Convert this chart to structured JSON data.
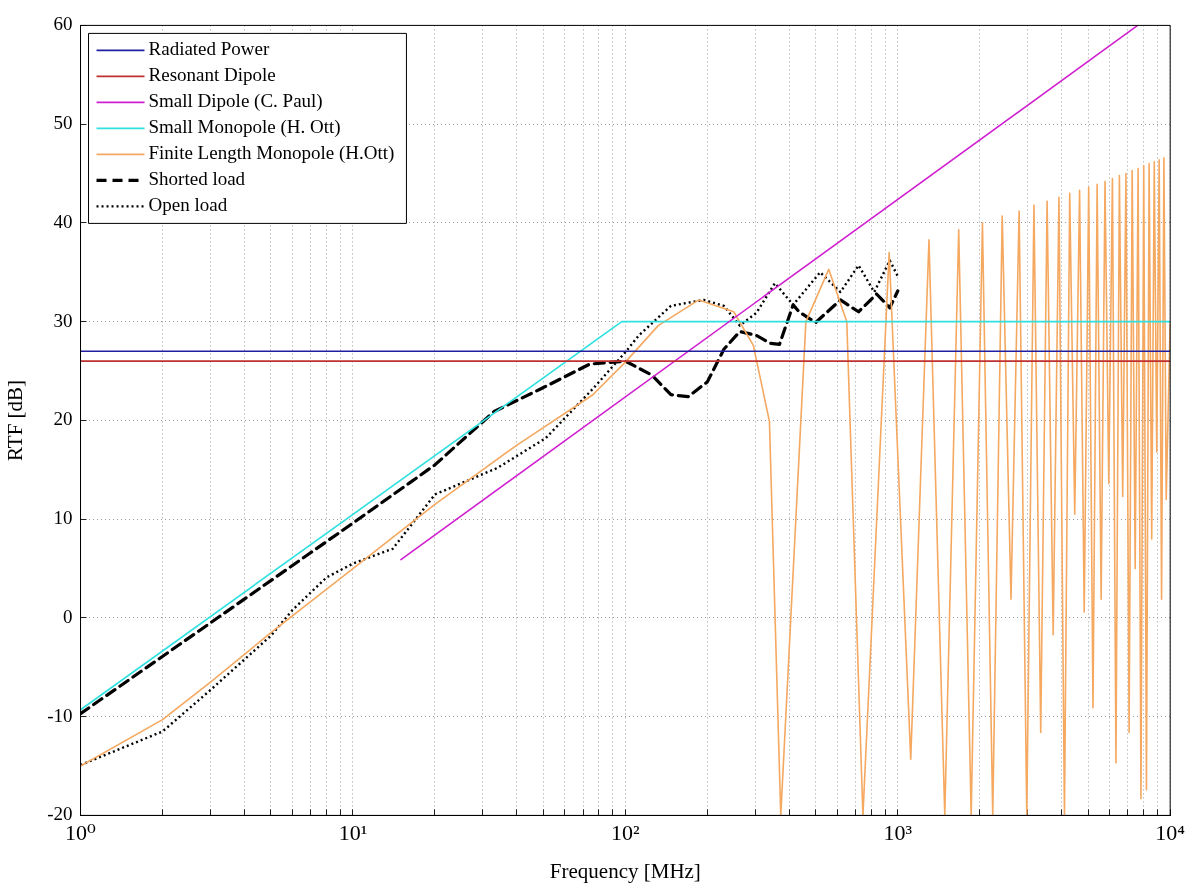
{
  "chart_data": {
    "type": "line",
    "xlabel": "Frequency [MHz]",
    "ylabel": "RTF [dB]",
    "log": "x",
    "grid": true,
    "legend": "top left",
    "marker": "none",
    "xlim": [
      1,
      10000
    ],
    "ylim": [
      -20,
      60
    ],
    "xticks": [
      {
        "value": 1,
        "label": "10⁰"
      },
      {
        "value": 2,
        "label": null
      },
      {
        "value": 3,
        "label": null
      },
      {
        "value": 4,
        "label": null
      },
      {
        "value": 5,
        "label": null
      },
      {
        "value": 6,
        "label": null
      },
      {
        "value": 7,
        "label": null
      },
      {
        "value": 8,
        "label": null
      },
      {
        "value": 9,
        "label": null
      },
      {
        "value": 10,
        "label": "10¹"
      },
      {
        "value": 20,
        "label": null
      },
      {
        "value": 30,
        "label": null
      },
      {
        "value": 40,
        "label": null
      },
      {
        "value": 50,
        "label": null
      },
      {
        "value": 60,
        "label": null
      },
      {
        "value": 70,
        "label": null
      },
      {
        "value": 80,
        "label": null
      },
      {
        "value": 90,
        "label": null
      },
      {
        "value": 100,
        "label": "10²"
      },
      {
        "value": 200,
        "label": null
      },
      {
        "value": 300,
        "label": null
      },
      {
        "value": 400,
        "label": null
      },
      {
        "value": 500,
        "label": null
      },
      {
        "value": 600,
        "label": null
      },
      {
        "value": 700,
        "label": null
      },
      {
        "value": 800,
        "label": null
      },
      {
        "value": 900,
        "label": null
      },
      {
        "value": 1000,
        "label": "10³"
      },
      {
        "value": 2000,
        "label": null
      },
      {
        "value": 3000,
        "label": null
      },
      {
        "value": 4000,
        "label": null
      },
      {
        "value": 5000,
        "label": null
      },
      {
        "value": 6000,
        "label": null
      },
      {
        "value": 7000,
        "label": null
      },
      {
        "value": 8000,
        "label": null
      },
      {
        "value": 9000,
        "label": null
      },
      {
        "value": 10000,
        "label": "10⁴"
      }
    ],
    "yticks": [
      -20,
      -10,
      0,
      10,
      20,
      30,
      40,
      50,
      60
    ],
    "series": [
      {
        "name": "Radiated Power",
        "color": "#2020a0",
        "line_style": "solid",
        "x": [
          1,
          10000
        ],
        "values": [
          27,
          27
        ]
      },
      {
        "name": "Resonant Dipole",
        "color": "#c03030",
        "line_style": "solid",
        "x": [
          1,
          10000
        ],
        "values": [
          26,
          26
        ]
      },
      {
        "name": "Small Dipole (C. Paul)",
        "color": "#d020d0",
        "line_style": "solid",
        "x": [
          15,
          7600
        ],
        "values": [
          5.9,
          60
        ]
      },
      {
        "name": "Small Monopole (H. Ott)",
        "color": "#30e0e0",
        "line_style": "solid",
        "x": [
          1,
          97,
          10000
        ],
        "values": [
          -9.3,
          30,
          30
        ]
      },
      {
        "name": "Finite Length Monopole (H.Ott)",
        "color": "#f5a860",
        "line_style": "solid",
        "x": [
          1,
          2,
          3,
          5,
          10,
          20,
          40,
          76,
          100,
          132,
          186,
          250,
          295,
          338,
          372,
          460,
          558,
          650,
          745,
          930,
          1116,
          1302,
          1488,
          1674,
          1860,
          2046,
          2232,
          2418,
          2604,
          2790,
          2976,
          3162,
          3348,
          3534,
          3720,
          3906,
          4092,
          4278,
          4464,
          4650,
          4836,
          5022,
          5208,
          5394,
          5580,
          5766,
          5952,
          6138,
          6324,
          6510,
          6696,
          6882,
          7068,
          7254,
          7440,
          7626,
          7812,
          7998,
          8184,
          8370,
          8556,
          8742,
          8928,
          9114,
          9300,
          9486,
          9672,
          10000
        ],
        "values": [
          -15,
          -10.3,
          -6.5,
          -1.5,
          5,
          11.5,
          17.5,
          22.6,
          25.9,
          29.6,
          32.2,
          31,
          27.6,
          19.9,
          -20,
          30,
          35.3,
          30,
          -20,
          37,
          -14.3,
          38.3,
          -20,
          39.3,
          -20,
          40,
          -20,
          40.7,
          1.9,
          41.2,
          -20,
          41.8,
          -11.6,
          42.2,
          -1.7,
          42.6,
          -20,
          43,
          10.5,
          43.3,
          0.6,
          43.6,
          -9.1,
          43.9,
          1.9,
          44.2,
          13.6,
          44.5,
          -14.7,
          44.8,
          12.3,
          45,
          -11.6,
          45.3,
          5,
          45.5,
          -18.3,
          45.8,
          -17.4,
          46,
          8,
          46.2,
          16.8,
          46.4,
          1.9,
          46.6,
          12,
          30
        ]
      },
      {
        "name": "Shorted load",
        "color": "#000000",
        "line_style": "dashed",
        "x": [
          1,
          3,
          10,
          16,
          20,
          33,
          49,
          74,
          100,
          125,
          147,
          170,
          200,
          230,
          263,
          303,
          341,
          368,
          413,
          434,
          499,
          616,
          718,
          836,
          935,
          1000
        ],
        "values": [
          -9.7,
          -0.5,
          9.6,
          13.6,
          15.5,
          20.9,
          23.2,
          25.7,
          26,
          24.6,
          22.6,
          22.4,
          23.9,
          27.2,
          29,
          28.6,
          27.8,
          27.7,
          31.7,
          31,
          29.9,
          32.2,
          31,
          32.8,
          31.4,
          33.1
        ]
      },
      {
        "name": "Open load",
        "color": "#000000",
        "line_style": "dotted",
        "x": [
          1,
          2,
          3,
          5,
          6,
          8,
          10,
          14,
          20,
          34,
          51,
          76,
          100,
          112,
          147,
          194,
          230,
          263,
          303,
          354,
          413,
          519,
          616,
          718,
          820,
          935,
          1000
        ],
        "values": [
          -14.9,
          -11.5,
          -7.3,
          -1.8,
          0.8,
          4.1,
          5.5,
          7,
          12.5,
          15.2,
          18.2,
          23.2,
          26.9,
          28.6,
          31.6,
          32.2,
          31.6,
          29.6,
          30.9,
          33.9,
          31.7,
          35,
          33,
          35.7,
          33,
          36.2,
          34.6
        ]
      }
    ]
  }
}
